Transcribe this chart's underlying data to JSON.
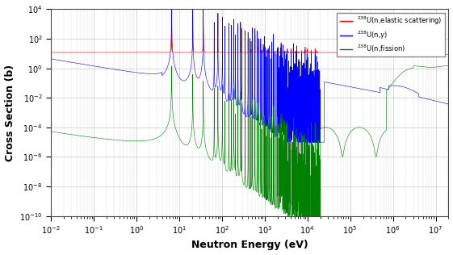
{
  "xlabel": "Neutron Energy (eV)",
  "ylabel": "Cross Section (b)",
  "line_colors": [
    "red",
    "blue",
    "green"
  ],
  "background_color": "#ffffff",
  "grid_color": "#bbbbbb",
  "xlim": [
    0.01,
    20000000.0
  ],
  "ylim": [
    1e-10,
    10000.0
  ],
  "legend_labels": [
    "$^{238}$U(n,elastic scattering)",
    "$^{238}$U(n,$\\gamma$)",
    "$^{238}$U(n,fission)"
  ]
}
